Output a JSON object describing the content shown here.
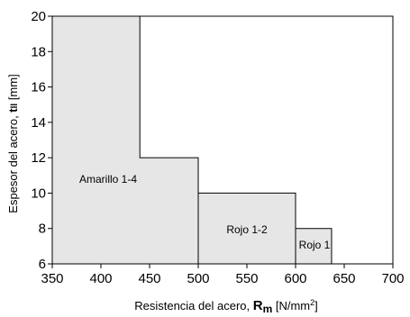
{
  "chart_data": {
    "type": "area",
    "xlim": [
      350,
      700
    ],
    "ylim": [
      6,
      20
    ],
    "xticks": [
      350,
      400,
      450,
      500,
      550,
      600,
      650,
      700
    ],
    "yticks": [
      6,
      8,
      10,
      12,
      14,
      16,
      18,
      20
    ],
    "xlabel": {
      "prefix": "Resistencia del acero, ",
      "symbol": "R",
      "symbol_sub": "m",
      "unit_prefix": " [N/mm",
      "unit_sup": "2",
      "unit_suffix": "]"
    },
    "ylabel": {
      "prefix": "Espesor del acero, ",
      "symbol": "t",
      "symbol_sub": "ll",
      "unit": " [mm]"
    },
    "regions": [
      {
        "label": "Amarillo 1-4",
        "steps": [
          {
            "x0": 350,
            "x1": 440,
            "y": 20
          },
          {
            "x0": 440,
            "x1": 500,
            "y": 12
          }
        ]
      },
      {
        "label": "Rojo 1-2",
        "steps": [
          {
            "x0": 500,
            "x1": 600,
            "y": 10
          }
        ]
      },
      {
        "label": "Rojo 1",
        "steps": [
          {
            "x0": 600,
            "x1": 637,
            "y": 8
          }
        ]
      }
    ],
    "fill_color": "#e6e6e6",
    "stroke_color": "#000000",
    "grid": false
  }
}
